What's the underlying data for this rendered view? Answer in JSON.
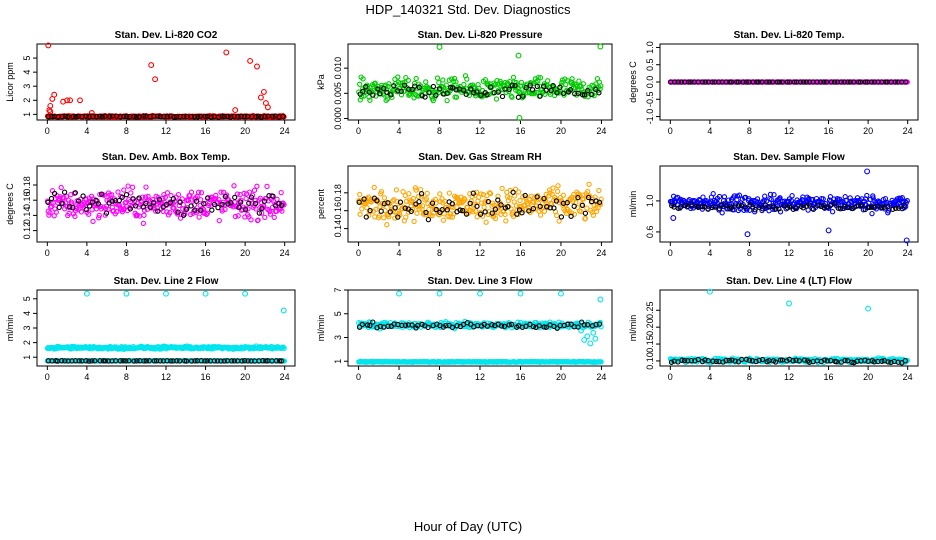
{
  "figure": {
    "title": "HDP_140321  Std. Dev. Diagnostics",
    "xlabel": "Hour of Day (UTC)"
  },
  "chart_data": [
    {
      "type": "scatter",
      "title": "Stan. Dev. Li-820 CO2",
      "ylabel": "Licor ppm",
      "xlim": [
        0,
        24
      ],
      "ylim": [
        0.6,
        6.0
      ],
      "xticks": [
        0,
        4,
        8,
        12,
        16,
        20,
        24
      ],
      "xticklabels": [
        "0",
        "4",
        "8",
        "12",
        "16",
        "20",
        "24"
      ],
      "yticks": [
        1,
        2,
        3,
        4,
        5
      ],
      "yticklabels": [
        "1",
        "2",
        "3",
        "4",
        "5"
      ],
      "series": [
        {
          "color": "#ff0000",
          "baseline": 0.85,
          "noise": 0.05,
          "outliers": [
            [
              0.1,
              5.9
            ],
            [
              0.2,
              1.3
            ],
            [
              0.3,
              1.6
            ],
            [
              0.5,
              2.1
            ],
            [
              0.7,
              2.4
            ],
            [
              0.3,
              1.2
            ],
            [
              1.6,
              1.9
            ],
            [
              2.0,
              2.0
            ],
            [
              2.3,
              2.0
            ],
            [
              3.3,
              2.0
            ],
            [
              4.5,
              1.1
            ],
            [
              10.5,
              4.5
            ],
            [
              10.9,
              3.5
            ],
            [
              18.1,
              5.4
            ],
            [
              19.0,
              1.3
            ],
            [
              20.5,
              4.8
            ],
            [
              21.2,
              4.4
            ],
            [
              21.6,
              2.2
            ],
            [
              21.9,
              2.6
            ],
            [
              22.1,
              1.8
            ],
            [
              22.3,
              1.5
            ]
          ]
        },
        {
          "color": "#000000",
          "baseline": 0.85,
          "noise": 0.03,
          "outliers": []
        }
      ]
    },
    {
      "type": "scatter",
      "title": "Stan. Dev. Li-820 Pressure",
      "ylabel": "kPa",
      "xlim": [
        0,
        24
      ],
      "ylim": [
        -0.0003,
        0.0148
      ],
      "xticks": [
        0,
        4,
        8,
        12,
        16,
        20,
        24
      ],
      "xticklabels": [
        "0",
        "4",
        "8",
        "12",
        "16",
        "20",
        "24"
      ],
      "yticks": [
        0.0,
        0.005,
        0.01
      ],
      "yticklabels": [
        "0.000",
        "0.005",
        "0.010"
      ],
      "series": [
        {
          "color": "#00cc00",
          "baseline": 0.0058,
          "noise": 0.0018,
          "outliers": [
            [
              8.0,
              0.0142
            ],
            [
              23.9,
              0.0143
            ],
            [
              15.8,
              0.0125
            ],
            [
              15.9,
              0.0001
            ]
          ]
        },
        {
          "color": "#000000",
          "baseline": 0.0055,
          "noise": 0.0012,
          "outliers": []
        }
      ]
    },
    {
      "type": "scatter",
      "title": "Stan. Dev. Li-820 Temp.",
      "ylabel": "degrees C",
      "xlim": [
        0,
        24
      ],
      "ylim": [
        -1.1,
        1.1
      ],
      "xticks": [
        0,
        4,
        8,
        12,
        16,
        20,
        24
      ],
      "xticklabels": [
        "0",
        "4",
        "8",
        "12",
        "16",
        "20",
        "24"
      ],
      "yticks": [
        -1.0,
        -0.5,
        0.0,
        0.5,
        1.0
      ],
      "yticklabels": [
        "-1.0",
        "-0.5",
        "0.0",
        "0.5",
        "1.0"
      ],
      "series": [
        {
          "color": "#ff00ff",
          "baseline": 0.0,
          "noise": 0.0,
          "outliers": []
        },
        {
          "color": "#000000",
          "baseline": 0.0,
          "noise": 0.0,
          "outliers": []
        }
      ]
    },
    {
      "type": "scatter",
      "title": "Stan. Dev. Amb. Box Temp.",
      "ylabel": "degrees C",
      "xlim": [
        0,
        24
      ],
      "ylim": [
        0.105,
        0.205
      ],
      "xticks": [
        0,
        4,
        8,
        12,
        16,
        20,
        24
      ],
      "xticklabels": [
        "0",
        "4",
        "8",
        "12",
        "16",
        "20",
        "24"
      ],
      "yticks": [
        0.12,
        0.14,
        0.16,
        0.18
      ],
      "yticklabels": [
        "0.12",
        "0.14",
        "0.16",
        "0.18"
      ],
      "series": [
        {
          "color": "#ff00ff",
          "baseline": 0.155,
          "noise": 0.017,
          "outliers": []
        },
        {
          "color": "#000000",
          "baseline": 0.155,
          "noise": 0.012,
          "outliers": []
        }
      ]
    },
    {
      "type": "scatter",
      "title": "Stan. Dev. Gas Stream RH",
      "ylabel": "percent",
      "xlim": [
        0,
        24
      ],
      "ylim": [
        0.125,
        0.21
      ],
      "xticks": [
        0,
        4,
        8,
        12,
        16,
        20,
        24
      ],
      "xticklabels": [
        "0",
        "4",
        "8",
        "12",
        "16",
        "20",
        "24"
      ],
      "yticks": [
        0.14,
        0.16,
        0.18
      ],
      "yticklabels": [
        "0.14",
        "0.16",
        "0.18"
      ],
      "series": [
        {
          "color": "#ffa500",
          "baseline": 0.167,
          "noise": 0.015,
          "outliers": []
        },
        {
          "color": "#000000",
          "baseline": 0.165,
          "noise": 0.011,
          "outliers": []
        }
      ]
    },
    {
      "type": "scatter",
      "title": "Stan. Dev. Sample Flow",
      "ylabel": "ml/min",
      "xlim": [
        0,
        24
      ],
      "ylim": [
        0.47,
        1.45
      ],
      "xticks": [
        0,
        4,
        8,
        12,
        16,
        20,
        24
      ],
      "xticklabels": [
        "0",
        "4",
        "8",
        "12",
        "16",
        "20",
        "24"
      ],
      "yticks": [
        0.6,
        1.0
      ],
      "yticklabels": [
        "0.6",
        "1.0"
      ],
      "series": [
        {
          "color": "#0000ff",
          "baseline": 0.97,
          "noise": 0.09,
          "outliers": [
            [
              7.8,
              0.57
            ],
            [
              16.0,
              0.62
            ],
            [
              19.9,
              1.38
            ],
            [
              23.9,
              0.49
            ],
            [
              0.3,
              0.78
            ]
          ]
        },
        {
          "color": "#000000",
          "baseline": 0.92,
          "noise": 0.03,
          "outliers": []
        }
      ]
    },
    {
      "type": "scatter",
      "title": "Stan. Dev. Line 2 Flow",
      "ylabel": "ml/min",
      "xlim": [
        0,
        24
      ],
      "ylim": [
        0.4,
        5.6
      ],
      "xticks": [
        0,
        4,
        8,
        12,
        16,
        20,
        24
      ],
      "xticklabels": [
        "0",
        "4",
        "8",
        "12",
        "16",
        "20",
        "24"
      ],
      "yticks": [
        1,
        2,
        3,
        4,
        5
      ],
      "yticklabels": [
        "1",
        "2",
        "3",
        "4",
        "5"
      ],
      "series": [
        {
          "color": "#00e5ee",
          "baseline": 1.65,
          "noise": 0.08,
          "outliers": [
            [
              4.0,
              5.35
            ],
            [
              8.0,
              5.35
            ],
            [
              12.0,
              5.35
            ],
            [
              16.0,
              5.35
            ],
            [
              20.0,
              5.35
            ],
            [
              23.9,
              4.2
            ]
          ]
        },
        {
          "color": "#00e5ee",
          "baseline": 0.75,
          "noise": 0.01,
          "outliers": []
        },
        {
          "color": "#000000",
          "baseline": 0.75,
          "noise": 0.01,
          "outliers": []
        }
      ]
    },
    {
      "type": "scatter",
      "title": "Stan. Dev. Line 3 Flow",
      "ylabel": "ml/min",
      "xlim": [
        0,
        24
      ],
      "ylim": [
        0.6,
        7.0
      ],
      "xticks": [
        0,
        4,
        8,
        12,
        16,
        20,
        24
      ],
      "xticklabels": [
        "0",
        "4",
        "8",
        "12",
        "16",
        "20",
        "24"
      ],
      "yticks": [
        1,
        3,
        5,
        7
      ],
      "yticklabels": [
        "1",
        "3",
        "5",
        "7"
      ],
      "series": [
        {
          "color": "#00e5ee",
          "baseline": 4.05,
          "noise": 0.2,
          "outliers": [
            [
              4.0,
              6.7
            ],
            [
              8.0,
              6.7
            ],
            [
              12.0,
              6.7
            ],
            [
              16.0,
              6.7
            ],
            [
              20.0,
              6.7
            ],
            [
              23.9,
              6.2
            ],
            [
              22.3,
              2.8
            ],
            [
              22.6,
              3.1
            ],
            [
              22.9,
              2.5
            ],
            [
              23.2,
              3.4
            ],
            [
              22.0,
              3.6
            ],
            [
              23.4,
              2.9
            ]
          ]
        },
        {
          "color": "#00e5ee",
          "baseline": 0.95,
          "noise": 0.03,
          "outliers": []
        },
        {
          "color": "#000000",
          "baseline": 4.0,
          "noise": 0.18,
          "outliers": []
        }
      ]
    },
    {
      "type": "scatter",
      "title": "Stan. Dev. Line 4 (LT) Flow",
      "ylabel": "ml/min",
      "xlim": [
        0,
        24
      ],
      "ylim": [
        0.085,
        0.31
      ],
      "xticks": [
        0,
        4,
        8,
        12,
        16,
        20,
        24
      ],
      "xticklabels": [
        "0",
        "4",
        "8",
        "12",
        "16",
        "20",
        "24"
      ],
      "yticks": [
        0.1,
        0.15,
        0.2,
        0.25
      ],
      "yticklabels": [
        "0.10",
        "0.15",
        "0.20",
        "0.25"
      ],
      "series": [
        {
          "color": "#00e5ee",
          "baseline": 0.102,
          "noise": 0.005,
          "outliers": [
            [
              4.0,
              0.305
            ],
            [
              12.0,
              0.27
            ],
            [
              20.0,
              0.255
            ]
          ]
        },
        {
          "color": "#000000",
          "baseline": 0.1,
          "noise": 0.004,
          "outliers": []
        }
      ]
    }
  ]
}
